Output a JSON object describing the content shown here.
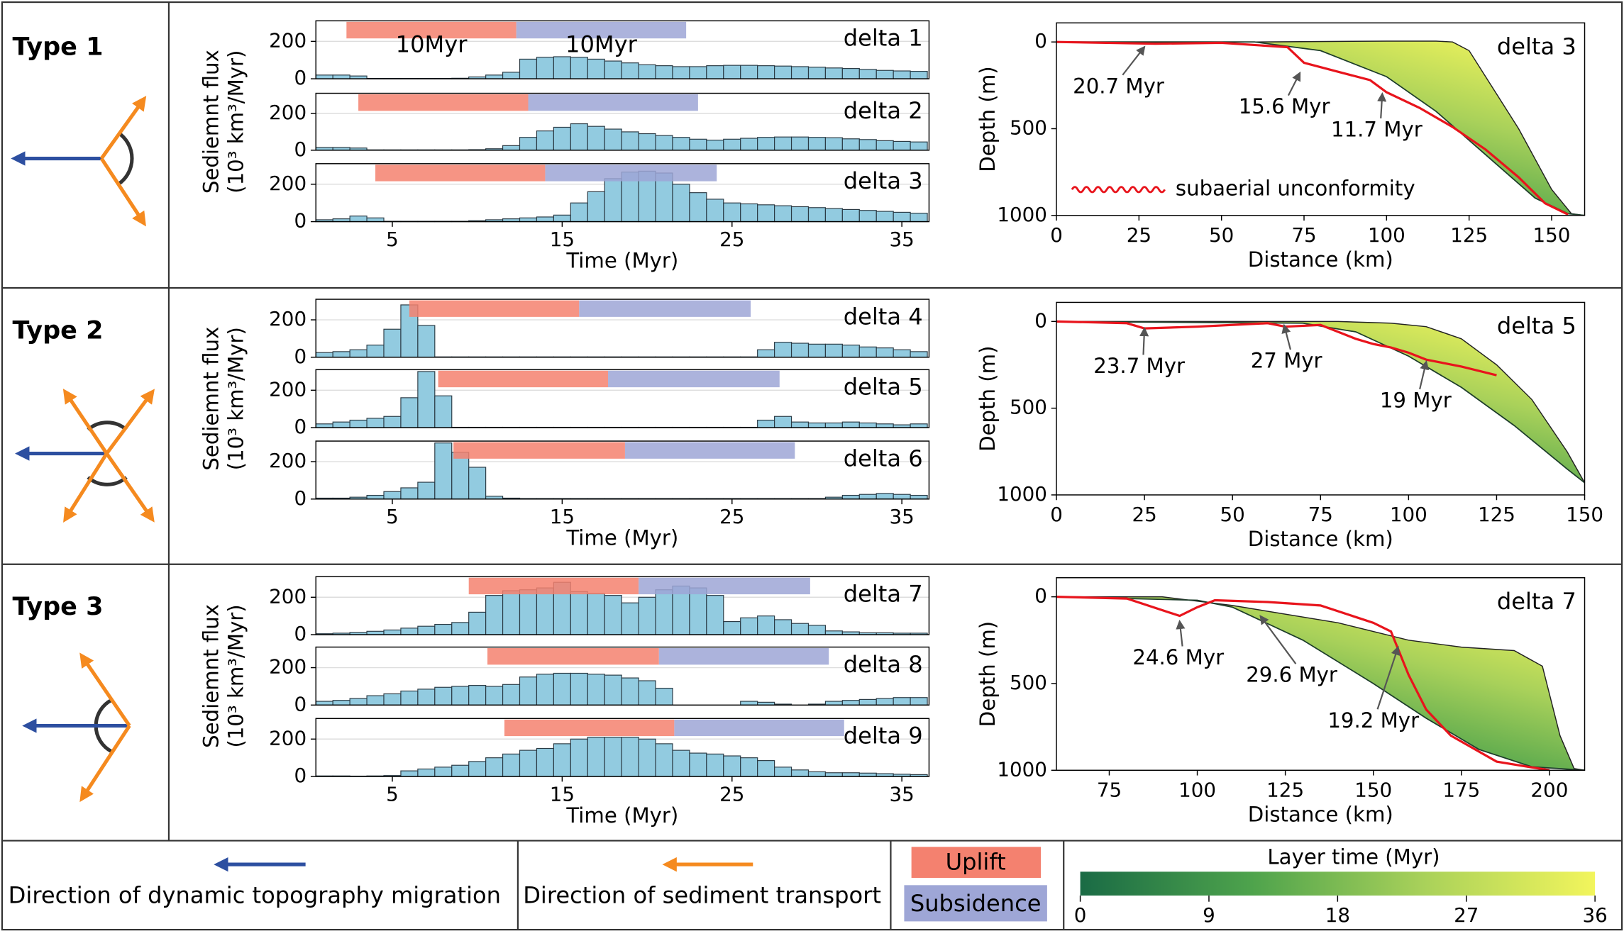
{
  "types": [
    "Type 1",
    "Type 2",
    "Type 3"
  ],
  "chart_data": [
    {
      "type": "bar",
      "label": "delta 1",
      "x": [
        1,
        2,
        3,
        4,
        5,
        6,
        7,
        8,
        9,
        10,
        11,
        12,
        13,
        14,
        15,
        16,
        17,
        18,
        19,
        20,
        21,
        22,
        23,
        24,
        25,
        26,
        27,
        28,
        29,
        30,
        31,
        32,
        33,
        34,
        35,
        36
      ],
      "values": [
        20,
        20,
        15,
        2,
        2,
        2,
        2,
        2,
        3,
        10,
        20,
        35,
        105,
        115,
        118,
        115,
        105,
        95,
        85,
        75,
        70,
        65,
        65,
        70,
        72,
        72,
        70,
        68,
        65,
        62,
        58,
        55,
        50,
        45,
        42,
        40
      ],
      "color": "#92cbe0",
      "xlim": [
        0.5,
        36.6
      ],
      "ylim": [
        0,
        310
      ],
      "yticks": [
        0,
        200
      ],
      "grid": true,
      "uplift": [
        2.3,
        12.3
      ],
      "subsidence": [
        12.3,
        22.3
      ],
      "band_labels": [
        "10Myr",
        "10Myr"
      ]
    },
    {
      "type": "bar",
      "label": "delta 2",
      "x": [
        1,
        2,
        3,
        4,
        5,
        6,
        7,
        8,
        9,
        10,
        11,
        12,
        13,
        14,
        15,
        16,
        17,
        18,
        19,
        20,
        21,
        22,
        23,
        24,
        25,
        26,
        27,
        28,
        29,
        30,
        31,
        32,
        33,
        34,
        35,
        36
      ],
      "values": [
        15,
        15,
        12,
        2,
        2,
        2,
        2,
        2,
        2,
        3,
        8,
        25,
        70,
        105,
        125,
        144,
        130,
        115,
        100,
        90,
        80,
        70,
        60,
        55,
        60,
        65,
        70,
        72,
        72,
        70,
        68,
        62,
        58,
        52,
        48,
        45
      ],
      "color": "#92cbe0",
      "xlim": [
        0.5,
        36.6
      ],
      "ylim": [
        0,
        310
      ],
      "yticks": [
        0,
        200
      ],
      "grid": true,
      "uplift": [
        3.0,
        13.0
      ],
      "subsidence": [
        13.0,
        23.0
      ],
      "ylabel": [
        "Sediemnt flux",
        "(10³ km³/Myr)"
      ]
    },
    {
      "type": "bar",
      "label": "delta 3",
      "x": [
        1,
        2,
        3,
        4,
        5,
        6,
        7,
        8,
        9,
        10,
        11,
        12,
        13,
        14,
        15,
        16,
        17,
        18,
        19,
        20,
        21,
        22,
        23,
        24,
        25,
        26,
        27,
        28,
        29,
        30,
        31,
        32,
        33,
        34,
        35,
        36
      ],
      "values": [
        10,
        15,
        30,
        20,
        2,
        2,
        2,
        2,
        2,
        5,
        10,
        15,
        20,
        25,
        35,
        100,
        160,
        230,
        265,
        270,
        260,
        200,
        155,
        120,
        100,
        95,
        90,
        85,
        80,
        75,
        70,
        65,
        60,
        55,
        50,
        45
      ],
      "color": "#92cbe0",
      "xlim": [
        0.5,
        36.6
      ],
      "ylim": [
        0,
        310
      ],
      "yticks": [
        0,
        200
      ],
      "grid": true,
      "uplift": [
        4.0,
        14.0
      ],
      "subsidence": [
        14.0,
        24.1
      ],
      "xticks": [
        5,
        15,
        25,
        35
      ],
      "xlabel": "Time (Myr)"
    },
    {
      "type": "bar",
      "label": "delta 4",
      "x": [
        1,
        2,
        3,
        4,
        5,
        6,
        7,
        8,
        9,
        10,
        11,
        12,
        13,
        14,
        15,
        16,
        17,
        18,
        19,
        20,
        21,
        22,
        23,
        24,
        25,
        26,
        27,
        28,
        29,
        30,
        31,
        32,
        33,
        34,
        35,
        36
      ],
      "values": [
        25,
        30,
        40,
        65,
        150,
        280,
        170,
        2,
        2,
        2,
        2,
        2,
        2,
        2,
        2,
        2,
        2,
        2,
        2,
        2,
        2,
        2,
        2,
        2,
        2,
        2,
        40,
        80,
        75,
        70,
        70,
        65,
        55,
        50,
        40,
        30
      ],
      "color": "#92cbe0",
      "xlim": [
        0.5,
        36.6
      ],
      "ylim": [
        0,
        310
      ],
      "yticks": [
        0,
        200
      ],
      "grid": true,
      "uplift": [
        6.0,
        16.0
      ],
      "subsidence": [
        16.0,
        26.1
      ]
    },
    {
      "type": "bar",
      "label": "delta 5",
      "x": [
        1,
        2,
        3,
        4,
        5,
        6,
        7,
        8,
        9,
        10,
        11,
        12,
        13,
        14,
        15,
        16,
        17,
        18,
        19,
        20,
        21,
        22,
        23,
        24,
        25,
        26,
        27,
        28,
        29,
        30,
        31,
        32,
        33,
        34,
        35,
        36
      ],
      "values": [
        20,
        30,
        40,
        50,
        60,
        160,
        300,
        170,
        2,
        2,
        2,
        2,
        2,
        2,
        2,
        2,
        2,
        2,
        2,
        2,
        2,
        2,
        2,
        2,
        2,
        2,
        40,
        60,
        30,
        25,
        25,
        30,
        25,
        20,
        15,
        20
      ],
      "color": "#92cbe0",
      "xlim": [
        0.5,
        36.6
      ],
      "ylim": [
        0,
        310
      ],
      "yticks": [
        0,
        200
      ],
      "grid": true,
      "uplift": [
        7.7,
        17.7
      ],
      "subsidence": [
        17.7,
        27.8
      ],
      "ylabel": [
        "Sediemnt flux",
        "(10³ km³/Myr)"
      ]
    },
    {
      "type": "bar",
      "label": "delta 6",
      "x": [
        1,
        2,
        3,
        4,
        5,
        6,
        7,
        8,
        9,
        10,
        11,
        12,
        13,
        14,
        15,
        16,
        17,
        18,
        19,
        20,
        21,
        22,
        23,
        24,
        25,
        26,
        27,
        28,
        29,
        30,
        31,
        32,
        33,
        34,
        35,
        36
      ],
      "values": [
        5,
        5,
        10,
        20,
        40,
        60,
        90,
        300,
        250,
        170,
        15,
        5,
        3,
        3,
        3,
        3,
        3,
        3,
        3,
        3,
        3,
        3,
        3,
        3,
        3,
        3,
        3,
        3,
        3,
        3,
        10,
        20,
        25,
        30,
        25,
        20
      ],
      "color": "#92cbe0",
      "xlim": [
        0.5,
        36.6
      ],
      "ylim": [
        0,
        310
      ],
      "yticks": [
        0,
        200
      ],
      "grid": true,
      "uplift": [
        8.6,
        18.7
      ],
      "subsidence": [
        18.7,
        28.7
      ],
      "xticks": [
        5,
        15,
        25,
        35
      ],
      "xlabel": "Time (Myr)"
    },
    {
      "type": "bar",
      "label": "delta 7",
      "x": [
        1,
        2,
        3,
        4,
        5,
        6,
        7,
        8,
        9,
        10,
        11,
        12,
        13,
        14,
        15,
        16,
        17,
        18,
        19,
        20,
        21,
        22,
        23,
        24,
        25,
        26,
        27,
        28,
        29,
        30,
        31,
        32,
        33,
        34,
        35,
        36
      ],
      "values": [
        5,
        8,
        12,
        18,
        25,
        35,
        45,
        55,
        65,
        120,
        210,
        235,
        240,
        250,
        280,
        230,
        220,
        210,
        170,
        200,
        240,
        260,
        250,
        210,
        70,
        90,
        100,
        80,
        60,
        50,
        20,
        15,
        10,
        10,
        8,
        8
      ],
      "color": "#92cbe0",
      "xlim": [
        0.5,
        36.6
      ],
      "ylim": [
        0,
        310
      ],
      "yticks": [
        0,
        200
      ],
      "grid": true,
      "uplift": [
        9.5,
        19.5
      ],
      "subsidence": [
        19.5,
        29.6
      ]
    },
    {
      "type": "bar",
      "label": "delta 8",
      "x": [
        1,
        2,
        3,
        4,
        5,
        6,
        7,
        8,
        9,
        10,
        11,
        12,
        13,
        14,
        15,
        16,
        17,
        18,
        19,
        20,
        21,
        22,
        23,
        24,
        25,
        26,
        27,
        28,
        29,
        30,
        31,
        32,
        33,
        34,
        35,
        36
      ],
      "values": [
        20,
        25,
        35,
        50,
        60,
        75,
        85,
        95,
        100,
        105,
        100,
        110,
        150,
        165,
        170,
        170,
        165,
        160,
        145,
        130,
        90,
        0,
        0,
        0,
        0,
        20,
        15,
        5,
        0,
        5,
        20,
        25,
        30,
        35,
        40,
        40
      ],
      "color": "#92cbe0",
      "xlim": [
        0.5,
        36.6
      ],
      "ylim": [
        0,
        310
      ],
      "yticks": [
        0,
        200
      ],
      "grid": true,
      "uplift": [
        10.6,
        20.7
      ],
      "subsidence": [
        20.7,
        30.7
      ],
      "ylabel": [
        "Sediemnt flux",
        "(10³ km³/Myr)"
      ]
    },
    {
      "type": "bar",
      "label": "delta 9",
      "x": [
        1,
        2,
        3,
        4,
        5,
        6,
        7,
        8,
        9,
        10,
        11,
        12,
        13,
        14,
        15,
        16,
        17,
        18,
        19,
        20,
        21,
        22,
        23,
        24,
        25,
        26,
        27,
        28,
        29,
        30,
        31,
        32,
        33,
        34,
        35,
        36
      ],
      "values": [
        3,
        3,
        2,
        3,
        5,
        30,
        40,
        50,
        60,
        80,
        100,
        120,
        140,
        150,
        175,
        200,
        210,
        210,
        210,
        200,
        175,
        140,
        125,
        120,
        110,
        100,
        85,
        50,
        35,
        25,
        20,
        20,
        18,
        15,
        12,
        10
      ],
      "color": "#92cbe0",
      "xlim": [
        0.5,
        36.6
      ],
      "ylim": [
        0,
        310
      ],
      "yticks": [
        0,
        200
      ],
      "grid": true,
      "uplift": [
        11.6,
        21.6
      ],
      "subsidence": [
        21.6,
        31.6
      ],
      "xticks": [
        5,
        15,
        25,
        35
      ],
      "xlabel": "Time (Myr)"
    },
    {
      "type": "section",
      "label": "delta 3",
      "xlim": [
        0,
        160
      ],
      "ylim": [
        1000,
        -110
      ],
      "xticks": [
        0,
        25,
        50,
        75,
        100,
        125,
        150
      ],
      "yticks": [
        0,
        500,
        1000
      ],
      "xlabel": "Distance (km)",
      "ylabel": "Depth (m)",
      "surface": {
        "x": [
          0,
          20,
          60,
          100,
          115,
          120,
          125,
          130,
          140,
          150,
          156,
          160
        ],
        "y": [
          0,
          0,
          0,
          -5,
          -5,
          0,
          50,
          200,
          500,
          850,
          990,
          1000
        ]
      },
      "base": {
        "x": [
          0,
          60,
          80,
          100,
          115,
          130,
          145,
          155,
          160
        ],
        "y": [
          0,
          0,
          50,
          200,
          400,
          650,
          900,
          990,
          1000
        ]
      },
      "unconformity": {
        "x": [
          0,
          30,
          50,
          70,
          75,
          85,
          95,
          100,
          110,
          120,
          130,
          140,
          148,
          155
        ],
        "y": [
          0,
          10,
          5,
          30,
          120,
          170,
          220,
          290,
          380,
          490,
          620,
          780,
          930,
          995
        ],
        "color": "#e8141c"
      },
      "annotations": [
        "20.7 Myr",
        "15.6 Myr",
        "11.7 Myr"
      ],
      "legend": "subaerial unconformity"
    },
    {
      "type": "section",
      "label": "delta 5",
      "xlim": [
        0,
        150
      ],
      "ylim": [
        1000,
        -110
      ],
      "xticks": [
        0,
        25,
        50,
        75,
        100,
        125,
        150
      ],
      "yticks": [
        0,
        500,
        1000
      ],
      "xlabel": "Distance (km)",
      "ylabel": "Depth (m)",
      "surface": {
        "x": [
          0,
          60,
          80,
          95,
          105,
          115,
          125,
          135,
          145,
          150
        ],
        "y": [
          0,
          0,
          0,
          10,
          30,
          100,
          250,
          450,
          750,
          930
        ]
      },
      "base": {
        "x": [
          0,
          70,
          85,
          100,
          115,
          130,
          145,
          150
        ],
        "y": [
          0,
          10,
          60,
          200,
          380,
          600,
          850,
          930
        ]
      },
      "unconformity": {
        "x": [
          0,
          20,
          25,
          40,
          60,
          65,
          75,
          80,
          85,
          90,
          95,
          100,
          105,
          115,
          125
        ],
        "y": [
          0,
          10,
          40,
          30,
          10,
          30,
          20,
          60,
          100,
          130,
          150,
          180,
          220,
          260,
          310
        ],
        "color": "#e8141c"
      },
      "annotations": [
        "23.7 Myr",
        "27 Myr",
        "19 Myr"
      ]
    },
    {
      "type": "section",
      "label": "delta 7",
      "xlim": [
        60,
        210
      ],
      "ylim": [
        1000,
        -110
      ],
      "xticks": [
        75,
        100,
        125,
        150,
        175,
        200
      ],
      "yticks": [
        0,
        500,
        1000
      ],
      "xlabel": "Distance (km)",
      "ylabel": "Depth (m)",
      "surface": {
        "x": [
          60,
          90,
          110,
          140,
          160,
          175,
          190,
          198,
          203,
          207,
          210
        ],
        "y": [
          0,
          0,
          50,
          150,
          250,
          290,
          310,
          400,
          800,
          990,
          1000
        ]
      },
      "base": {
        "x": [
          60,
          100,
          110,
          130,
          150,
          165,
          180,
          195,
          210
        ],
        "y": [
          0,
          20,
          60,
          250,
          500,
          700,
          880,
          980,
          1000
        ]
      },
      "unconformity": {
        "x": [
          60,
          80,
          95,
          100,
          105,
          120,
          135,
          150,
          155,
          157,
          160,
          165,
          172,
          185,
          200
        ],
        "y": [
          0,
          10,
          110,
          60,
          20,
          30,
          50,
          150,
          200,
          300,
          450,
          650,
          800,
          950,
          1000
        ],
        "color": "#e8141c"
      },
      "annotations": [
        "24.6 Myr",
        "29.6 Myr",
        "19.2 Myr"
      ]
    }
  ],
  "legend": {
    "topography": {
      "label": "Direction of dynamic topography migration"
    },
    "transport": {
      "label": "Direction of sediment transport"
    },
    "uplift": {
      "label": "Uplift",
      "color": "#f4816f"
    },
    "subsidence": {
      "label": "Subsidence",
      "color": "#9ea6d6"
    },
    "colorbar": {
      "title": "Layer time (Myr)",
      "lim": [
        0,
        36
      ],
      "ticks": [
        0,
        9,
        18,
        27,
        36
      ],
      "colors": [
        "#1a6b45",
        "#4ea34c",
        "#a9d15a",
        "#f2f55c"
      ]
    }
  }
}
